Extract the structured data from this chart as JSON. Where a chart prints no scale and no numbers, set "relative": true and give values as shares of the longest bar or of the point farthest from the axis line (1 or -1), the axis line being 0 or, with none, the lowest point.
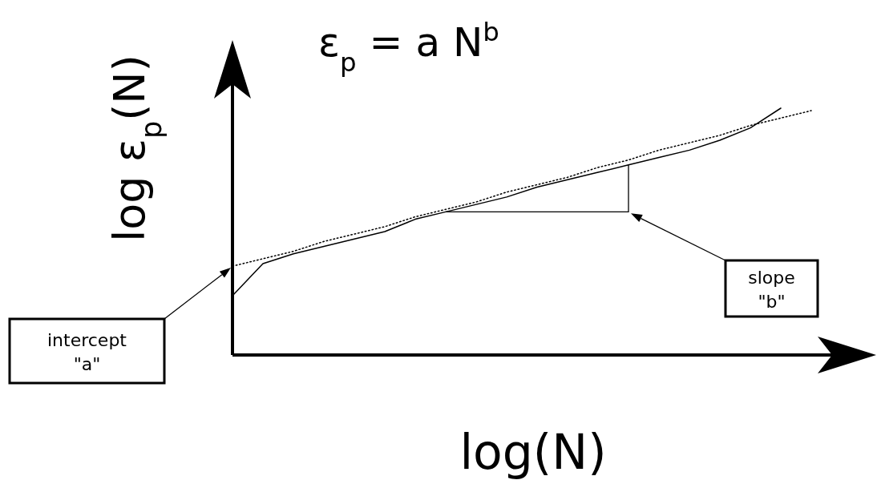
{
  "chart_data": {
    "type": "line",
    "relative": true,
    "title": "ε$_{p}$ = a N$^{b}$",
    "xlabel": "log(N)",
    "ylabel": "log ε$_{p}$(N)",
    "categories": [
      null,
      null,
      null,
      null,
      null,
      null,
      null,
      null,
      null,
      null,
      null,
      null,
      null,
      null,
      null,
      null,
      null,
      null,
      null,
      null,
      null
    ],
    "series": [
      {
        "color": "#000000",
        "line_style": "solid",
        "values": [
          0.24,
          0.37,
          0.41,
          0.44,
          0.47,
          0.5,
          0.55,
          0.58,
          0.61,
          0.64,
          0.68,
          0.71,
          0.74,
          0.77,
          0.8,
          0.83,
          0.87,
          0.92,
          1.0,
          null,
          null
        ]
      },
      {
        "color": "#000000",
        "line_style": "dotted",
        "values": [
          0.36,
          0.39,
          0.42,
          0.46,
          0.49,
          0.52,
          0.56,
          0.59,
          0.62,
          0.66,
          0.69,
          0.72,
          0.76,
          0.79,
          0.83,
          0.86,
          0.89,
          0.93,
          0.96,
          0.99,
          null
        ]
      }
    ],
    "annotations": [
      "intercept \"a\"",
      "slope \"b\""
    ]
  }
}
